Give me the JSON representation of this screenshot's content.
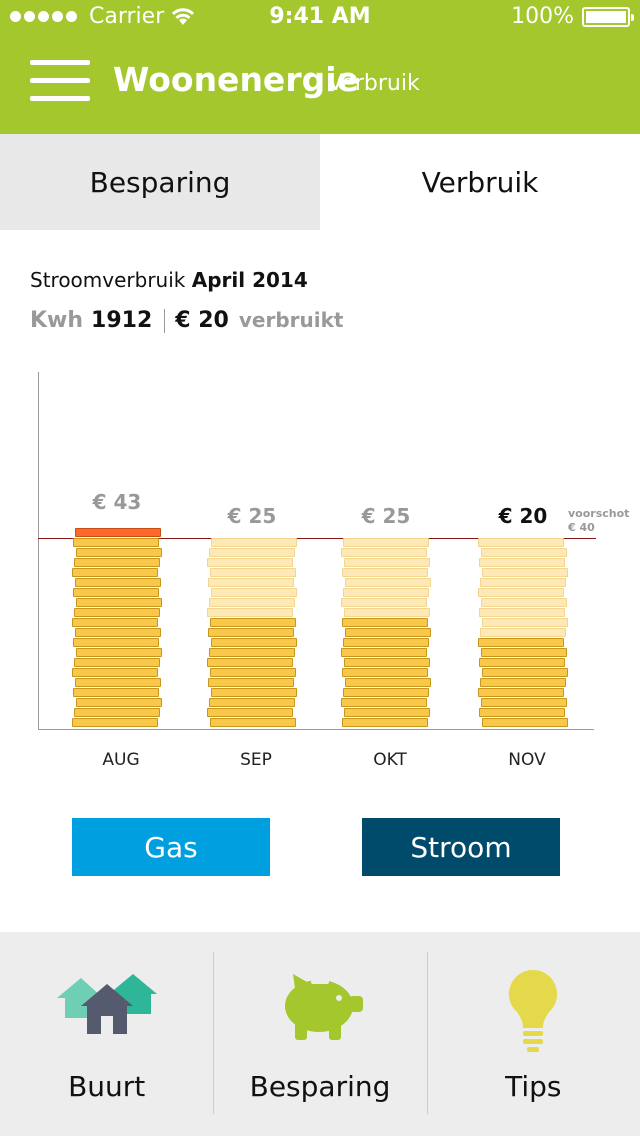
{
  "status_bar": {
    "carrier": "Carrier",
    "time": "9:41 AM",
    "battery": "100%"
  },
  "header": {
    "title": "Woonenergie",
    "subtitle": "Verbruik",
    "menu_icon": "hamburger-menu-icon",
    "background_color": "#a3c72c"
  },
  "tabs": [
    {
      "label": "Besparing",
      "active": false
    },
    {
      "label": "Verbruik",
      "active": true
    }
  ],
  "summary": {
    "label": "Stroomverbruik",
    "period": "April 2014",
    "kwh_label": "Kwh",
    "kwh_value": "1912",
    "euro_value": "€ 20",
    "used_label": "verbruikt"
  },
  "chart_data": {
    "type": "bar",
    "categories": [
      "AUG",
      "SEP",
      "OKT",
      "NOV"
    ],
    "values": [
      43,
      25,
      25,
      20
    ],
    "value_labels": [
      "€ 43",
      "€ 25",
      "€ 25",
      "€ 20"
    ],
    "reference_line": {
      "label_line1": "voorschot",
      "label_line2": "€ 40",
      "value": 40
    },
    "current_category": "NOV",
    "ylim": [
      0,
      40
    ],
    "grid": false,
    "colors": {
      "full": "#f8c84a",
      "advance_remaining": "#fde9b8",
      "over": "#ff6a2a",
      "reference": "#8a1a1a"
    }
  },
  "buttons": {
    "gas": {
      "label": "Gas",
      "color": "#009fe0"
    },
    "stroom": {
      "label": "Stroom",
      "color": "#004a6c"
    }
  },
  "bottom_nav": [
    {
      "label": "Buurt",
      "icon": "houses-icon"
    },
    {
      "label": "Besparing",
      "icon": "piggy-bank-icon"
    },
    {
      "label": "Tips",
      "icon": "lightbulb-icon"
    }
  ]
}
